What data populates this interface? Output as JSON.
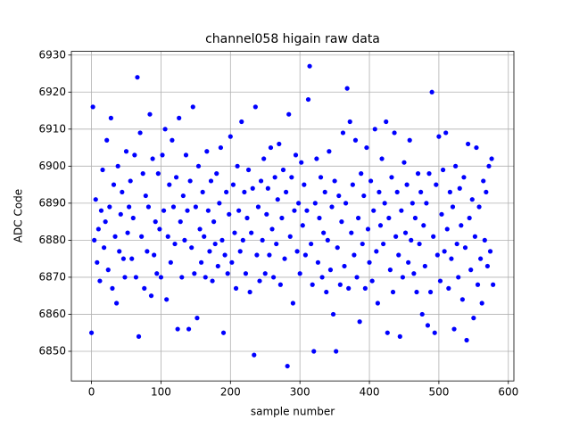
{
  "chart_data": {
    "type": "scatter",
    "title": "channel058 higain raw data",
    "x_label": "sample number",
    "y_label": "ADC Code",
    "xlim": [
      -29,
      608
    ],
    "ylim": [
      6842,
      6931
    ],
    "xticks": [
      0,
      100,
      200,
      300,
      400,
      500,
      600
    ],
    "yticks": [
      6850,
      6860,
      6870,
      6880,
      6890,
      6900,
      6910,
      6920,
      6930
    ],
    "grid": true,
    "series": [
      {
        "color": "#0000ff",
        "x": [
          0,
          2,
          4,
          6,
          8,
          10,
          12,
          14,
          16,
          18,
          20,
          22,
          24,
          26,
          28,
          30,
          32,
          34,
          36,
          38,
          40,
          42,
          44,
          46,
          48,
          50,
          52,
          54,
          56,
          58,
          60,
          62,
          64,
          66,
          68,
          70,
          72,
          74,
          76,
          78,
          80,
          82,
          84,
          86,
          88,
          90,
          92,
          94,
          96,
          98,
          100,
          102,
          104,
          106,
          108,
          110,
          112,
          114,
          116,
          118,
          120,
          122,
          124,
          126,
          128,
          130,
          132,
          134,
          136,
          138,
          140,
          142,
          144,
          146,
          148,
          150,
          152,
          154,
          156,
          158,
          160,
          162,
          164,
          166,
          168,
          170,
          172,
          174,
          176,
          178,
          180,
          182,
          184,
          186,
          188,
          190,
          192,
          194,
          196,
          198,
          200,
          202,
          204,
          206,
          208,
          210,
          212,
          214,
          216,
          218,
          220,
          222,
          224,
          226,
          228,
          230,
          232,
          234,
          236,
          238,
          240,
          242,
          244,
          246,
          248,
          250,
          252,
          254,
          256,
          258,
          260,
          262,
          264,
          266,
          268,
          270,
          272,
          274,
          276,
          278,
          280,
          282,
          284,
          286,
          288,
          290,
          292,
          294,
          296,
          298,
          300,
          302,
          304,
          306,
          308,
          310,
          312,
          314,
          316,
          318,
          320,
          322,
          324,
          326,
          328,
          330,
          332,
          334,
          336,
          338,
          340,
          342,
          344,
          346,
          348,
          350,
          352,
          354,
          356,
          358,
          360,
          362,
          364,
          366,
          368,
          370,
          372,
          374,
          376,
          378,
          380,
          382,
          384,
          386,
          388,
          390,
          392,
          394,
          396,
          398,
          400,
          402,
          404,
          406,
          408,
          410,
          412,
          414,
          416,
          418,
          420,
          422,
          424,
          426,
          428,
          430,
          432,
          434,
          436,
          438,
          440,
          442,
          444,
          446,
          448,
          450,
          452,
          454,
          456,
          458,
          460,
          462,
          464,
          466,
          468,
          470,
          472,
          474,
          476,
          478,
          480,
          482,
          484,
          486,
          488,
          490,
          492,
          494,
          496,
          498,
          500,
          502,
          504,
          506,
          508,
          510,
          512,
          514,
          516,
          518,
          520,
          522,
          524,
          526,
          528,
          530,
          532,
          534,
          536,
          538,
          540,
          542,
          544,
          546,
          548,
          550,
          552,
          554,
          556,
          558,
          560,
          562,
          564,
          566,
          568,
          570,
          572,
          574,
          576,
          578
        ],
        "values": [
          6855,
          6916,
          6880,
          6891,
          6874,
          6883,
          6869,
          6888,
          6899,
          6878,
          6885,
          6907,
          6872,
          6889,
          6913,
          6867,
          6895,
          6881,
          6863,
          6900,
          6877,
          6887,
          6893,
          6875,
          6870,
          6904,
          6882,
          6889,
          6896,
          6875,
          6886,
          6903,
          6870,
          6924,
          6854,
          6909,
          6881,
          6898,
          6867,
          6892,
          6877,
          6889,
          6914,
          6865,
          6902,
          6876,
          6885,
          6871,
          6898,
          6883,
          6870,
          6903,
          6888,
          6910,
          6864,
          6881,
          6895,
          6874,
          6907,
          6889,
          6879,
          6897,
          6856,
          6913,
          6885,
          6870,
          6892,
          6880,
          6903,
          6888,
          6856,
          6896,
          6878,
          6916,
          6871,
          6889,
          6859,
          6900,
          6883,
          6874,
          6893,
          6881,
          6870,
          6904,
          6888,
          6877,
          6896,
          6869,
          6885,
          6879,
          6898,
          6873,
          6890,
          6905,
          6880,
          6855,
          6876,
          6893,
          6871,
          6887,
          6908,
          6874,
          6895,
          6882,
          6867,
          6900,
          6888,
          6877,
          6912,
          6880,
          6893,
          6871,
          6886,
          6899,
          6866,
          6882,
          6894,
          6849,
          6916,
          6876,
          6889,
          6869,
          6896,
          6880,
          6902,
          6871,
          6887,
          6894,
          6876,
          6905,
          6883,
          6870,
          6897,
          6879,
          6891,
          6906,
          6868,
          6886,
          6899,
          6875,
          6893,
          6846,
          6914,
          6881,
          6897,
          6863,
          6888,
          6903,
          6877,
          6890,
          6871,
          6901,
          6884,
          6895,
          6876,
          6888,
          6918,
          6927,
          6879,
          6868,
          6850,
          6890,
          6902,
          6874,
          6886,
          6897,
          6870,
          6882,
          6893,
          6866,
          6880,
          6904,
          6872,
          6889,
          6860,
          6896,
          6850,
          6878,
          6892,
          6868,
          6885,
          6909,
          6873,
          6890,
          6921,
          6867,
          6912,
          6882,
          6895,
          6876,
          6907,
          6870,
          6886,
          6858,
          6898,
          6879,
          6892,
          6867,
          6905,
          6883,
          6874,
          6896,
          6869,
          6888,
          6910,
          6877,
          6863,
          6893,
          6884,
          6902,
          6879,
          6890,
          6912,
          6855,
          6886,
          6872,
          6897,
          6866,
          6909,
          6881,
          6893,
          6876,
          6854,
          6888,
          6870,
          6901,
          6882,
          6895,
          6874,
          6907,
          6880,
          6890,
          6871,
          6886,
          6866,
          6898,
          6879,
          6893,
          6860,
          6884,
          6873,
          6890,
          6857,
          6898,
          6866,
          6920,
          6881,
          6855,
          6895,
          6876,
          6908,
          6869,
          6887,
          6899,
          6877,
          6909,
          6883,
          6867,
          6893,
          6875,
          6889,
          6856,
          6900,
          6879,
          6870,
          6894,
          6884,
          6864,
          6897,
          6878,
          6853,
          6906,
          6886,
          6872,
          6891,
          6859,
          6881,
          6905,
          6868,
          6889,
          6875,
          6863,
          6896,
          6880,
          6893,
          6873,
          6900,
          6877,
          6902,
          6868
        ]
      }
    ]
  }
}
